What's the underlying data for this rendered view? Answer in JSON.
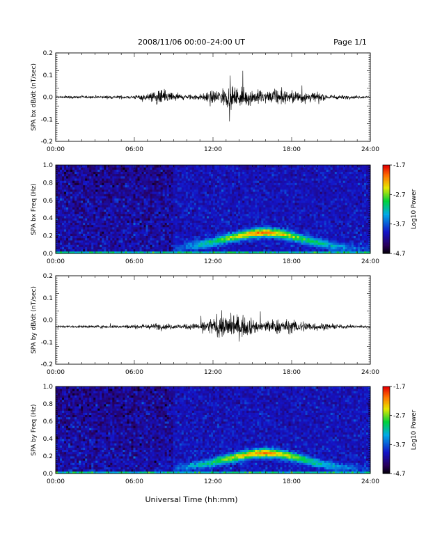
{
  "header": {
    "title": "2008/11/06  00:00–24:00 UT",
    "page": "Page 1/1"
  },
  "footer": {
    "xlabel": "Universal Time (hh:mm)"
  },
  "colors": {
    "trace": "#000000",
    "spectrogram_bg": "#0a1a8c"
  },
  "chart_data": [
    {
      "type": "line",
      "ylabel": "SPA bx dB/dt (nT/sec)",
      "xlim": [
        0,
        24
      ],
      "ylim": [
        -0.2,
        0.2
      ],
      "x_ticks": [
        "00:00",
        "06:00",
        "12:00",
        "18:00",
        "24:00"
      ],
      "y_ticks": [
        "0.2",
        "0.1",
        "0.0",
        "-0.1",
        "-0.2"
      ],
      "y_tick_values": [
        0.2,
        0.1,
        0.0,
        -0.1,
        -0.2
      ],
      "baseline": 0.0,
      "envelope": {
        "hours": [
          0,
          2,
          4,
          6,
          7,
          8,
          9,
          10,
          11,
          12,
          13,
          14,
          15,
          16,
          17,
          18,
          19,
          20,
          21,
          22,
          23,
          24
        ],
        "amplitude": [
          0.008,
          0.01,
          0.012,
          0.015,
          0.03,
          0.06,
          0.04,
          0.02,
          0.025,
          0.05,
          0.08,
          0.09,
          0.06,
          0.05,
          0.06,
          0.05,
          0.055,
          0.03,
          0.02,
          0.015,
          0.012,
          0.01
        ]
      }
    },
    {
      "type": "heatmap",
      "ylabel": "SPA bx Freq (Hz)",
      "xlim": [
        0,
        24
      ],
      "ylim": [
        0.0,
        1.0
      ],
      "x_ticks": [
        "00:00",
        "06:00",
        "12:00",
        "18:00",
        "24:00"
      ],
      "y_ticks": [
        "1.0",
        "0.8",
        "0.6",
        "0.4",
        "0.2",
        "0.0"
      ],
      "y_tick_values": [
        1.0,
        0.8,
        0.6,
        0.4,
        0.2,
        0.0
      ],
      "colorbar": {
        "label": "Log10 Power",
        "ticks": [
          "-1.7",
          "-2.7",
          "-3.7",
          "-4.7"
        ],
        "tick_values": [
          -1.7,
          -2.7,
          -3.7,
          -4.7
        ],
        "range": [
          -4.7,
          -1.7
        ]
      },
      "band": {
        "hours": [
          9,
          10,
          11,
          12,
          13,
          14,
          15,
          16,
          17,
          18,
          19,
          20,
          21,
          22,
          23,
          24
        ],
        "center_freq": [
          0.06,
          0.08,
          0.1,
          0.13,
          0.17,
          0.2,
          0.23,
          0.24,
          0.23,
          0.2,
          0.16,
          0.12,
          0.09,
          0.07,
          0.06,
          0.05
        ],
        "peak_log_power": [
          -3.8,
          -3.5,
          -3.2,
          -3.0,
          -2.7,
          -2.4,
          -2.2,
          -2.0,
          -2.3,
          -2.6,
          -2.9,
          -3.1,
          -3.3,
          -3.5,
          -3.7,
          -3.8
        ]
      }
    },
    {
      "type": "line",
      "ylabel": "SPA by dB/dt (nT/sec)",
      "xlim": [
        0,
        24
      ],
      "ylim": [
        -0.2,
        0.2
      ],
      "x_ticks": [
        "00:00",
        "06:00",
        "12:00",
        "18:00",
        "24:00"
      ],
      "y_ticks": [
        "0.2",
        "0.1",
        "0.0",
        "-0.1",
        "-0.2"
      ],
      "y_tick_values": [
        0.2,
        0.1,
        0.0,
        -0.1,
        -0.2
      ],
      "baseline": -0.03,
      "envelope": {
        "hours": [
          0,
          2,
          4,
          6,
          7,
          8,
          9,
          10,
          11,
          12,
          13,
          14,
          15,
          16,
          17,
          18,
          19,
          20,
          21,
          22,
          23,
          24
        ],
        "amplitude": [
          0.008,
          0.01,
          0.012,
          0.015,
          0.02,
          0.025,
          0.02,
          0.02,
          0.03,
          0.07,
          0.1,
          0.09,
          0.06,
          0.05,
          0.06,
          0.05,
          0.045,
          0.03,
          0.02,
          0.015,
          0.012,
          0.01
        ]
      }
    },
    {
      "type": "heatmap",
      "ylabel": "SPA by Freq (Hz)",
      "xlim": [
        0,
        24
      ],
      "ylim": [
        0.0,
        1.0
      ],
      "x_ticks": [
        "00:00",
        "06:00",
        "12:00",
        "18:00",
        "24:00"
      ],
      "y_ticks": [
        "1.0",
        "0.8",
        "0.6",
        "0.4",
        "0.2",
        "0.0"
      ],
      "y_tick_values": [
        1.0,
        0.8,
        0.6,
        0.4,
        0.2,
        0.0
      ],
      "colorbar": {
        "label": "Log10 Power",
        "ticks": [
          "-1.7",
          "-2.7",
          "-3.7",
          "-4.7"
        ],
        "tick_values": [
          -1.7,
          -2.7,
          -3.7,
          -4.7
        ],
        "range": [
          -4.7,
          -1.7
        ]
      },
      "band": {
        "hours": [
          9,
          10,
          11,
          12,
          13,
          14,
          15,
          16,
          17,
          18,
          19,
          20,
          21,
          22,
          23,
          24
        ],
        "center_freq": [
          0.06,
          0.08,
          0.1,
          0.13,
          0.17,
          0.2,
          0.23,
          0.24,
          0.23,
          0.2,
          0.16,
          0.12,
          0.09,
          0.07,
          0.06,
          0.05
        ],
        "peak_log_power": [
          -3.8,
          -3.5,
          -3.2,
          -3.0,
          -2.7,
          -2.4,
          -2.2,
          -2.0,
          -2.3,
          -2.6,
          -2.9,
          -3.1,
          -3.3,
          -3.5,
          -3.7,
          -3.8
        ]
      }
    }
  ]
}
